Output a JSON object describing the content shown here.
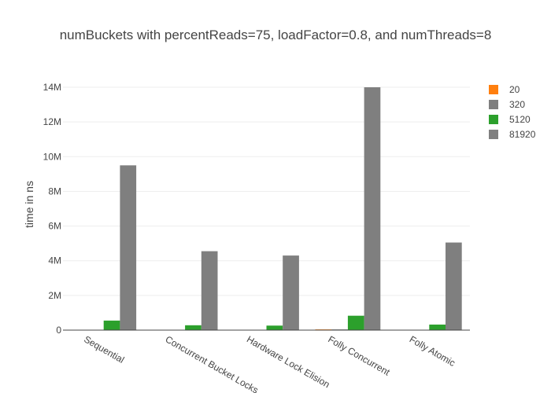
{
  "chart_data": {
    "type": "bar",
    "title": "numBuckets with percentReads=75, loadFactor=0.8, and numThreads=8",
    "xlabel": "",
    "ylabel": "time in ns",
    "categories": [
      "Sequential",
      "Concurrent Bucket Locks",
      "Hardware Lock Elision",
      "Folly Concurrent",
      "Folly Atomic"
    ],
    "ylim": [
      0,
      14500000
    ],
    "yticks": [
      0,
      2000000,
      4000000,
      6000000,
      8000000,
      10000000,
      12000000,
      14000000
    ],
    "ytick_labels": [
      "0",
      "2M",
      "4M",
      "6M",
      "8M",
      "10M",
      "12M",
      "14M"
    ],
    "grid": true,
    "legend_position": "top-right",
    "series": [
      {
        "name": "20",
        "color": "#ff7f0e",
        "values": [
          20000,
          15000,
          15000,
          40000,
          20000
        ]
      },
      {
        "name": "320",
        "color": "#7f7f7f",
        "values": [
          20000,
          15000,
          15000,
          40000,
          20000
        ]
      },
      {
        "name": "5120",
        "color": "#2ca02c",
        "values": [
          550000,
          280000,
          260000,
          830000,
          320000
        ]
      },
      {
        "name": "81920",
        "color": "#7f7f7f",
        "values": [
          9500000,
          4550000,
          4300000,
          14000000,
          5050000
        ]
      }
    ]
  }
}
